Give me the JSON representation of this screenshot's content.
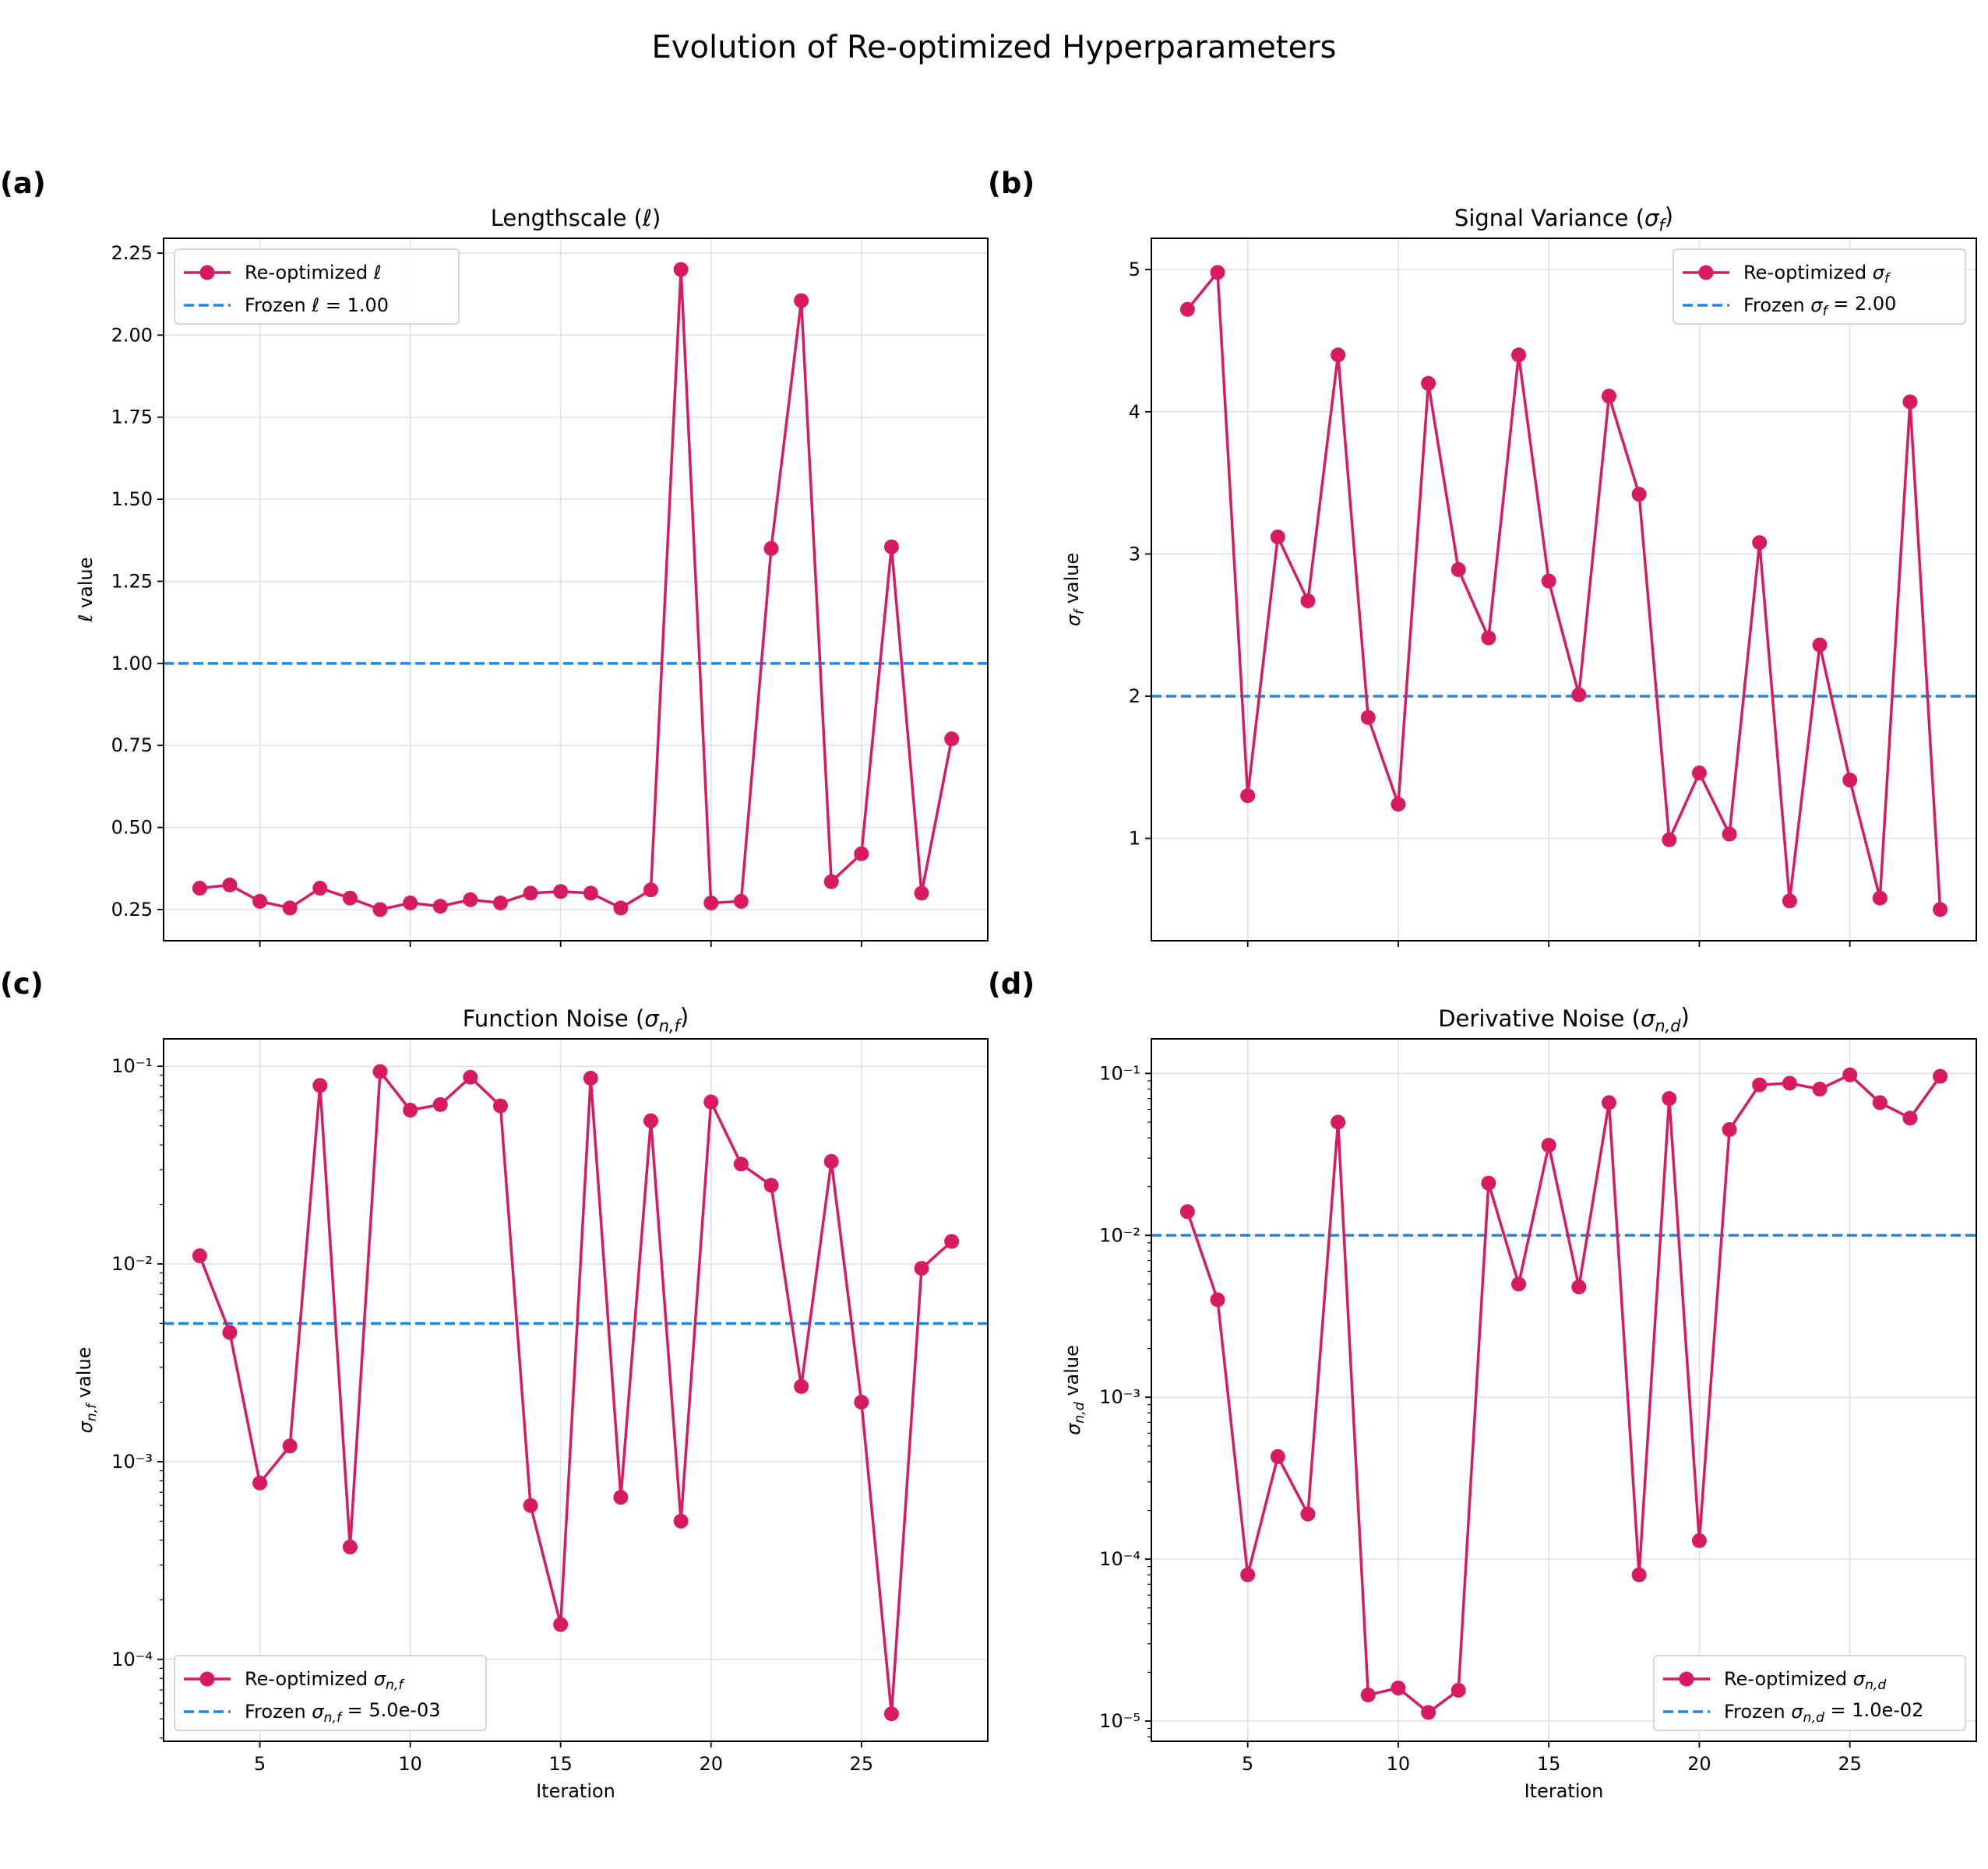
{
  "suptitle": "Evolution of Re-optimized Hyperparameters",
  "colors": {
    "series": "#d81b60",
    "frozen": "#1e88e5",
    "grid": "#e0e0e0",
    "axis": "#000000"
  },
  "chart_data": [
    {
      "id": "a",
      "panel_label": "(a)",
      "type": "line",
      "title": "Lengthscale (ℓ)",
      "xlabel": "",
      "ylabel": "ℓ value",
      "yscale": "linear",
      "xlim": [
        1.8,
        29.2
      ],
      "ylim": [
        0.155,
        2.295
      ],
      "xticks": [
        5,
        10,
        15,
        20,
        25
      ],
      "xticklabels": [
        "",
        "",
        "",
        "",
        ""
      ],
      "yticks": [
        0.25,
        0.5,
        0.75,
        1.0,
        1.25,
        1.5,
        1.75,
        2.0,
        2.25
      ],
      "yticklabels": [
        "0.25",
        "0.50",
        "0.75",
        "1.00",
        "1.25",
        "1.50",
        "1.75",
        "2.00",
        "2.25"
      ],
      "x": [
        3,
        4,
        5,
        6,
        7,
        8,
        9,
        10,
        11,
        12,
        13,
        14,
        15,
        16,
        17,
        18,
        19,
        20,
        21,
        22,
        23,
        24,
        25,
        26,
        27,
        28
      ],
      "series": [
        {
          "name": "Re-optimized ℓ",
          "values": [
            0.315,
            0.325,
            0.275,
            0.255,
            0.315,
            0.285,
            0.25,
            0.27,
            0.26,
            0.28,
            0.27,
            0.3,
            0.305,
            0.3,
            0.255,
            0.31,
            2.2,
            0.27,
            0.275,
            1.35,
            2.105,
            0.335,
            0.42,
            1.355,
            0.3,
            0.77
          ]
        }
      ],
      "frozen": {
        "name": "Frozen ℓ = 1.00",
        "value": 1.0
      },
      "legend_loc": "upper left"
    },
    {
      "id": "b",
      "panel_label": "(b)",
      "type": "line",
      "title": "Signal Variance (σ_f)",
      "xlabel": "",
      "ylabel": "σ_f value",
      "yscale": "linear",
      "xlim": [
        1.8,
        29.2
      ],
      "ylim": [
        0.28,
        5.22
      ],
      "xticks": [
        5,
        10,
        15,
        20,
        25
      ],
      "xticklabels": [
        "",
        "",
        "",
        "",
        ""
      ],
      "yticks": [
        1,
        2,
        3,
        4,
        5
      ],
      "yticklabels": [
        "1",
        "2",
        "3",
        "4",
        "5"
      ],
      "x": [
        3,
        4,
        5,
        6,
        7,
        8,
        9,
        10,
        11,
        12,
        13,
        14,
        15,
        16,
        17,
        18,
        19,
        20,
        21,
        22,
        23,
        24,
        25,
        26,
        27,
        28
      ],
      "series": [
        {
          "name": "Re-optimized σ_f",
          "values": [
            4.72,
            4.98,
            1.3,
            3.12,
            2.67,
            4.4,
            1.85,
            1.24,
            4.2,
            2.89,
            2.41,
            4.4,
            2.81,
            2.01,
            4.11,
            3.42,
            0.99,
            1.46,
            1.03,
            3.08,
            0.56,
            2.36,
            1.41,
            0.58,
            4.07,
            0.5
          ]
        }
      ],
      "frozen": {
        "name": "Frozen σ_f = 2.00",
        "value": 2.0
      },
      "legend_loc": "upper right"
    },
    {
      "id": "c",
      "panel_label": "(c)",
      "type": "line",
      "title": "Function Noise (σ_n,f)",
      "xlabel": "Iteration",
      "ylabel": "σ_n,f value",
      "yscale": "log",
      "xlim": [
        1.8,
        29.2
      ],
      "ylim": [
        3.85e-05,
        0.1376
      ],
      "xticks": [
        5,
        10,
        15,
        20,
        25
      ],
      "xticklabels": [
        "5",
        "10",
        "15",
        "20",
        "25"
      ],
      "yticks": [
        0.0001,
        0.001,
        0.01,
        0.1
      ],
      "yticklabels": [
        "10⁻⁴",
        "10⁻³",
        "10⁻²",
        "10⁻¹"
      ],
      "x": [
        3,
        4,
        5,
        6,
        7,
        8,
        9,
        10,
        11,
        12,
        13,
        14,
        15,
        16,
        17,
        18,
        19,
        20,
        21,
        22,
        23,
        24,
        25,
        26,
        27,
        28
      ],
      "series": [
        {
          "name": "Re-optimized σ_n,f",
          "values": [
            0.011,
            0.0045,
            0.00078,
            0.0012,
            0.08,
            0.00037,
            0.094,
            0.06,
            0.064,
            0.088,
            0.063,
            0.0006,
            0.00015,
            0.087,
            0.00066,
            0.053,
            0.0005,
            0.066,
            0.032,
            0.025,
            0.0024,
            0.033,
            0.002,
            5.3e-05,
            0.0095,
            0.013
          ]
        }
      ],
      "frozen": {
        "name": "Frozen σ_n,f = 5.0e-03",
        "value": 0.005
      },
      "legend_loc": "lower left"
    },
    {
      "id": "d",
      "panel_label": "(d)",
      "type": "line",
      "title": "Derivative Noise (σ_n,d)",
      "xlabel": "Iteration",
      "ylabel": "σ_n,d value",
      "yscale": "log",
      "xlim": [
        1.8,
        29.2
      ],
      "ylim": [
        7.5e-06,
        0.1635
      ],
      "xticks": [
        5,
        10,
        15,
        20,
        25
      ],
      "xticklabels": [
        "5",
        "10",
        "15",
        "20",
        "25"
      ],
      "yticks": [
        1e-05,
        0.0001,
        0.001,
        0.01,
        0.1
      ],
      "yticklabels": [
        "10⁻⁵",
        "10⁻⁴",
        "10⁻³",
        "10⁻²",
        "10⁻¹"
      ],
      "x": [
        3,
        4,
        5,
        6,
        7,
        8,
        9,
        10,
        11,
        12,
        13,
        14,
        15,
        16,
        17,
        18,
        19,
        20,
        21,
        22,
        23,
        24,
        25,
        26,
        27,
        28
      ],
      "series": [
        {
          "name": "Re-optimized σ_n,d",
          "values": [
            0.014,
            0.004,
            8e-05,
            0.00043,
            0.00019,
            0.05,
            1.45e-05,
            1.6e-05,
            1.13e-05,
            1.55e-05,
            0.021,
            0.005,
            0.036,
            0.0048,
            0.066,
            8e-05,
            0.07,
            0.00013,
            0.045,
            0.085,
            0.087,
            0.08,
            0.098,
            0.066,
            0.053,
            0.096
          ]
        }
      ],
      "frozen": {
        "name": "Frozen σ_n,d = 1.0e-02",
        "value": 0.01
      },
      "legend_loc": "lower right"
    }
  ]
}
